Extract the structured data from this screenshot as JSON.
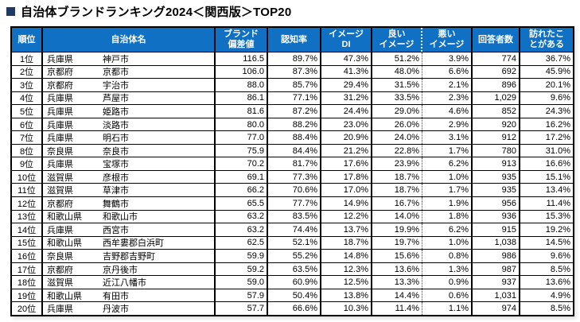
{
  "title": {
    "bullet_icon": "square-bullet",
    "text": "自治体ブランドランキング2024＜関西版＞TOP20"
  },
  "colors": {
    "header_bg": "#1070c4",
    "header_text": "#ffffff",
    "table_border": "#000000",
    "title_bullet": "#1f3864"
  },
  "table": {
    "headers": [
      "順位",
      "自治体名",
      "ブランド\n偏差値",
      "認知率",
      "イメージ\nDI",
      "良い\nイメージ",
      "悪い\nイメージ",
      "回答者数",
      "訪れたこ\nとがある"
    ],
    "rows": [
      {
        "rank": "1位",
        "pref": "兵庫県",
        "city": "神戸市",
        "brand": "116.5",
        "recognition": "89.7%",
        "di": "47.3%",
        "good": "51.2%",
        "bad": "3.9%",
        "respondents": "774",
        "visited": "36.7%"
      },
      {
        "rank": "2位",
        "pref": "京都府",
        "city": "京都市",
        "brand": "106.0",
        "recognition": "87.3%",
        "di": "41.3%",
        "good": "48.0%",
        "bad": "6.6%",
        "respondents": "692",
        "visited": "45.9%"
      },
      {
        "rank": "3位",
        "pref": "京都府",
        "city": "宇治市",
        "brand": "88.0",
        "recognition": "85.7%",
        "di": "29.4%",
        "good": "31.5%",
        "bad": "2.1%",
        "respondents": "896",
        "visited": "20.1%"
      },
      {
        "rank": "4位",
        "pref": "兵庫県",
        "city": "芦屋市",
        "brand": "86.1",
        "recognition": "77.1%",
        "di": "31.2%",
        "good": "33.5%",
        "bad": "2.3%",
        "respondents": "1,029",
        "visited": "9.6%"
      },
      {
        "rank": "5位",
        "pref": "兵庫県",
        "city": "姫路市",
        "brand": "81.6",
        "recognition": "87.2%",
        "di": "24.4%",
        "good": "29.0%",
        "bad": "4.6%",
        "respondents": "852",
        "visited": "24.3%"
      },
      {
        "rank": "6位",
        "pref": "兵庫県",
        "city": "淡路市",
        "brand": "80.0",
        "recognition": "88.2%",
        "di": "23.0%",
        "good": "26.0%",
        "bad": "2.9%",
        "respondents": "920",
        "visited": "16.2%"
      },
      {
        "rank": "7位",
        "pref": "兵庫県",
        "city": "明石市",
        "brand": "77.0",
        "recognition": "88.4%",
        "di": "20.9%",
        "good": "24.0%",
        "bad": "3.1%",
        "respondents": "912",
        "visited": "17.2%"
      },
      {
        "rank": "8位",
        "pref": "奈良県",
        "city": "奈良市",
        "brand": "75.9",
        "recognition": "84.4%",
        "di": "21.2%",
        "good": "22.8%",
        "bad": "1.7%",
        "respondents": "780",
        "visited": "31.0%"
      },
      {
        "rank": "9位",
        "pref": "兵庫県",
        "city": "宝塚市",
        "brand": "70.2",
        "recognition": "81.7%",
        "di": "17.6%",
        "good": "23.9%",
        "bad": "6.2%",
        "respondents": "913",
        "visited": "16.6%"
      },
      {
        "rank": "10位",
        "pref": "滋賀県",
        "city": "彦根市",
        "brand": "69.1",
        "recognition": "77.3%",
        "di": "17.8%",
        "good": "18.7%",
        "bad": "1.0%",
        "respondents": "935",
        "visited": "15.1%"
      },
      {
        "rank": "11位",
        "pref": "滋賀県",
        "city": "草津市",
        "brand": "66.2",
        "recognition": "70.6%",
        "di": "17.0%",
        "good": "18.7%",
        "bad": "1.7%",
        "respondents": "935",
        "visited": "13.4%"
      },
      {
        "rank": "12位",
        "pref": "京都府",
        "city": "舞鶴市",
        "brand": "65.5",
        "recognition": "77.7%",
        "di": "14.9%",
        "good": "16.7%",
        "bad": "1.9%",
        "respondents": "956",
        "visited": "11.4%"
      },
      {
        "rank": "13位",
        "pref": "和歌山県",
        "city": "和歌山市",
        "brand": "63.2",
        "recognition": "83.5%",
        "di": "12.2%",
        "good": "14.0%",
        "bad": "1.8%",
        "respondents": "936",
        "visited": "15.3%"
      },
      {
        "rank": "14位",
        "pref": "兵庫県",
        "city": "西宮市",
        "brand": "63.2",
        "recognition": "74.4%",
        "di": "13.7%",
        "good": "19.9%",
        "bad": "6.2%",
        "respondents": "915",
        "visited": "19.2%"
      },
      {
        "rank": "15位",
        "pref": "和歌山県",
        "city": "西牟婁郡白浜町",
        "brand": "62.5",
        "recognition": "52.1%",
        "di": "18.7%",
        "good": "19.7%",
        "bad": "1.0%",
        "respondents": "1,038",
        "visited": "14.5%"
      },
      {
        "rank": "16位",
        "pref": "奈良県",
        "city": "吉野郡吉野町",
        "brand": "59.9",
        "recognition": "55.2%",
        "di": "14.8%",
        "good": "15.6%",
        "bad": "0.8%",
        "respondents": "986",
        "visited": "9.6%"
      },
      {
        "rank": "17位",
        "pref": "京都府",
        "city": "京丹後市",
        "brand": "59.2",
        "recognition": "63.5%",
        "di": "12.3%",
        "good": "13.6%",
        "bad": "1.3%",
        "respondents": "987",
        "visited": "8.5%"
      },
      {
        "rank": "18位",
        "pref": "滋賀県",
        "city": "近江八幡市",
        "brand": "59.0",
        "recognition": "60.9%",
        "di": "12.5%",
        "good": "13.3%",
        "bad": "0.9%",
        "respondents": "937",
        "visited": "13.6%"
      },
      {
        "rank": "19位",
        "pref": "和歌山県",
        "city": "有田市",
        "brand": "57.9",
        "recognition": "50.4%",
        "di": "13.8%",
        "good": "14.4%",
        "bad": "0.6%",
        "respondents": "1,031",
        "visited": "4.9%"
      },
      {
        "rank": "20位",
        "pref": "兵庫県",
        "city": "丹波市",
        "brand": "57.7",
        "recognition": "66.6%",
        "di": "10.3%",
        "good": "11.4%",
        "bad": "1.1%",
        "respondents": "974",
        "visited": "8.5%"
      }
    ]
  }
}
